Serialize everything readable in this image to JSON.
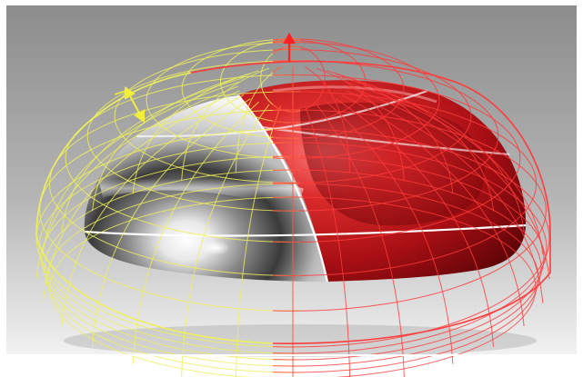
{
  "viewport": {
    "background_top": "#8c8c8c",
    "background_bottom": "#f2f2f2",
    "frame_color": "#ffffff"
  },
  "model": {
    "surfaces": [
      {
        "name": "chrome-surface",
        "color": "#bdbdbd"
      },
      {
        "name": "red-surface",
        "color": "#b3121a"
      }
    ],
    "wireframes": [
      {
        "name": "yellow-cage",
        "color": "#eef05a"
      },
      {
        "name": "red-cage",
        "color": "#ff3b3b"
      }
    ],
    "seam_color": "#ffffff"
  },
  "gizmos": [
    {
      "name": "yellow-manipulator",
      "color": "#f2ef3a",
      "icon": "double-arrow"
    },
    {
      "name": "red-manipulator",
      "color": "#ff2020",
      "icon": "up-arrow"
    }
  ]
}
